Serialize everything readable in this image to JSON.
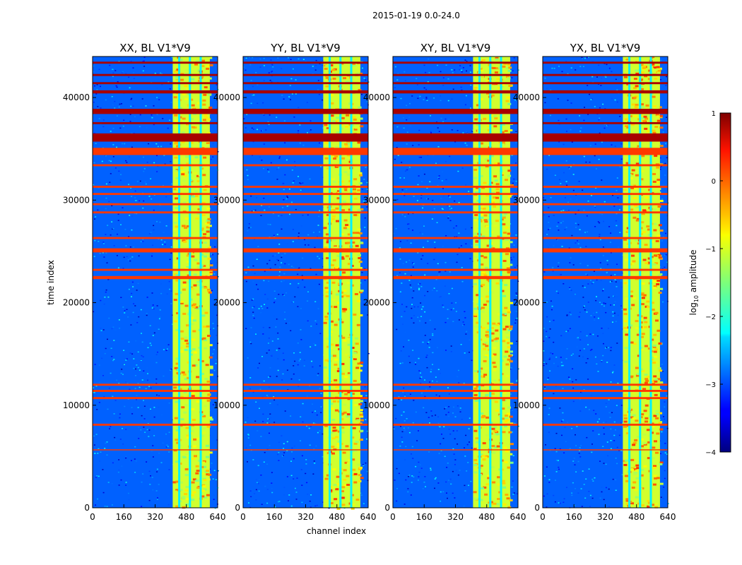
{
  "figure": {
    "suptitle": "2015-01-19 0.0-24.0",
    "xlabel": "channel index",
    "ylabel": "time index",
    "colorbar_label": "log",
    "colorbar_label_sub": "10",
    "colorbar_label_rest": " amplitude"
  },
  "chart_data": {
    "type": "heatmap",
    "title": "2015-01-19 0.0-24.0",
    "xlabel": "channel index",
    "ylabel": "time index",
    "colormap": "jet",
    "xlim": [
      0,
      640
    ],
    "ylim": [
      0,
      44000
    ],
    "xticks": [
      0,
      160,
      320,
      480,
      640
    ],
    "yticks": [
      0,
      10000,
      20000,
      30000,
      40000
    ],
    "colorbar": {
      "label": "log10 amplitude",
      "range": [
        -4,
        1
      ],
      "ticks": [
        1,
        0,
        -1,
        -2,
        -3,
        -4
      ],
      "tick_labels": [
        "1",
        "0",
        "−1",
        "−2",
        "−3",
        "−4"
      ]
    },
    "background_level": -2.9,
    "bright_channel_band": [
      410,
      600
    ],
    "band_level": -1.1,
    "band_gaps": [
      445,
      500,
      555
    ],
    "red_row_ranges": [
      [
        35700,
        36500
      ],
      [
        37400,
        37600
      ],
      [
        38400,
        38900
      ],
      [
        40400,
        40700
      ],
      [
        41300,
        41500
      ],
      [
        42100,
        42300
      ],
      [
        43300,
        43500
      ]
    ],
    "orange_row_ranges": [
      [
        34400,
        35100
      ],
      [
        33300,
        33500
      ],
      [
        31200,
        31400
      ],
      [
        30500,
        30700
      ],
      [
        29500,
        29700
      ],
      [
        28700,
        28900
      ],
      [
        26200,
        26400
      ],
      [
        24900,
        25300
      ],
      [
        23100,
        23300
      ],
      [
        22300,
        22600
      ],
      [
        11300,
        11500
      ],
      [
        11900,
        12100
      ],
      [
        10600,
        10800
      ],
      [
        8000,
        8200
      ],
      [
        5600,
        5700
      ]
    ],
    "panels": [
      {
        "name": "XX",
        "title": "XX, BL V1*V9"
      },
      {
        "name": "YY",
        "title": "YY, BL V1*V9"
      },
      {
        "name": "XY",
        "title": "XY, BL V1*V9"
      },
      {
        "name": "YX",
        "title": "YX, BL V1*V9"
      }
    ]
  }
}
